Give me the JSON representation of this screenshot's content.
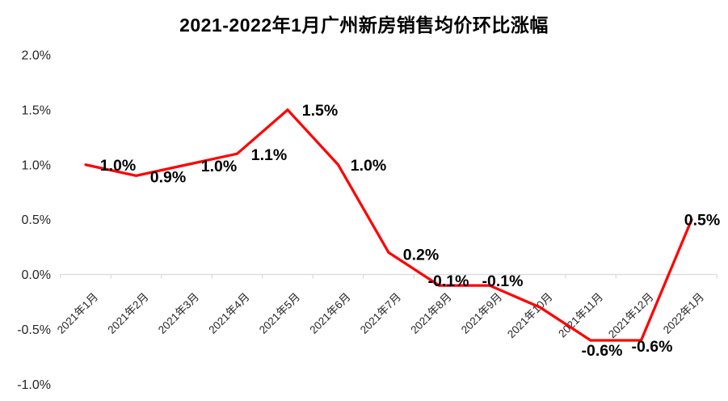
{
  "chart_data": {
    "type": "line",
    "title": "2021-2022年1月广州新房销售均价环比涨幅",
    "categories": [
      "2021年1月",
      "2021年2月",
      "2021年3月",
      "2021年4月",
      "2021年5月",
      "2021年6月",
      "2021年7月",
      "2021年8月",
      "2021年9月",
      "2021年10月",
      "2021年11月",
      "2021年12月",
      "2022年1月"
    ],
    "values": [
      1.0,
      0.9,
      1.0,
      1.1,
      1.5,
      1.0,
      0.2,
      -0.1,
      -0.1,
      -0.3,
      -0.6,
      -0.6,
      0.5
    ],
    "point_labels": [
      "1.0%",
      "0.9%",
      "1.0%",
      "1.1%",
      "1.5%",
      "1.0%",
      "0.2%",
      "-0.1%",
      "-0.1%",
      "",
      "-0.6%",
      "-0.6%",
      "0.5%"
    ],
    "xlabel": "",
    "ylabel": "",
    "y_tick_labels": [
      "2.0%",
      "1.5%",
      "1.0%",
      "0.5%",
      "0.0%",
      "-0.5%",
      "-1.0%"
    ],
    "y_tick_values": [
      2.0,
      1.5,
      1.0,
      0.5,
      0.0,
      -0.5,
      -1.0
    ],
    "ylim": [
      -1.0,
      2.0
    ],
    "grid": false,
    "legend": "none",
    "colors": {
      "line": "#ff0000",
      "axis": "#d9d9d9",
      "data_label": "#000000",
      "tick_label": "#262626",
      "title": "#000000",
      "background": "#ffffff"
    }
  }
}
